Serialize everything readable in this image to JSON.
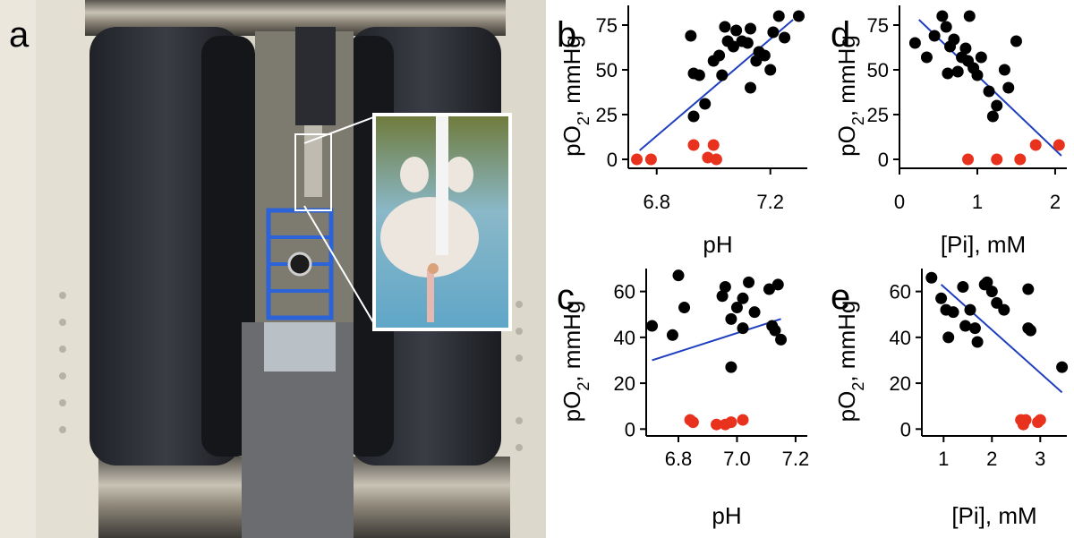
{
  "panel_labels": {
    "a": "a",
    "b": "b",
    "c": "c",
    "d": "d",
    "e": "e"
  },
  "colors": {
    "normal": "#000000",
    "hypoxic": "#e8321e",
    "fit": "#1f3fbf"
  },
  "photo": {
    "description_icon": "epr-magnet-photo"
  },
  "chart_data": [
    {
      "id": "b",
      "type": "scatter",
      "xlabel": "pH",
      "ylabel_parts": [
        "pO",
        "2",
        ", mmHg"
      ],
      "xlim": [
        6.7,
        7.33
      ],
      "ylim": [
        -5,
        86
      ],
      "xticks": [
        "6.8",
        "7.2"
      ],
      "xtick_values": [
        6.8,
        7.2
      ],
      "yticks": [
        "0",
        "25",
        "50",
        "75"
      ],
      "ytick_values": [
        0,
        25,
        50,
        75
      ],
      "fit": {
        "x": [
          6.74,
          7.28
        ],
        "y": [
          5,
          78
        ]
      },
      "series": [
        {
          "color_key": "normal",
          "points": [
            [
              6.92,
              69
            ],
            [
              6.93,
              48
            ],
            [
              6.95,
              47
            ],
            [
              6.97,
              31
            ],
            [
              6.93,
              24
            ],
            [
              7.0,
              55
            ],
            [
              7.02,
              58
            ],
            [
              7.03,
              47
            ],
            [
              7.04,
              74
            ],
            [
              7.05,
              66
            ],
            [
              7.07,
              63
            ],
            [
              7.08,
              72
            ],
            [
              7.1,
              66
            ],
            [
              7.12,
              65
            ],
            [
              7.13,
              73
            ],
            [
              7.15,
              55
            ],
            [
              7.16,
              60
            ],
            [
              7.18,
              58
            ],
            [
              7.2,
              50
            ],
            [
              7.21,
              71
            ],
            [
              7.23,
              80
            ],
            [
              7.25,
              68
            ],
            [
              7.3,
              80
            ],
            [
              7.13,
              40
            ]
          ]
        },
        {
          "color_key": "hypoxic",
          "points": [
            [
              6.73,
              0
            ],
            [
              6.78,
              0
            ],
            [
              6.93,
              8
            ],
            [
              6.98,
              1
            ],
            [
              7.0,
              8
            ],
            [
              7.01,
              0
            ]
          ]
        }
      ]
    },
    {
      "id": "c",
      "type": "scatter",
      "xlabel": "pH",
      "ylabel_parts": [
        "pO",
        "2",
        ", mmHg"
      ],
      "xlim": [
        6.69,
        7.24
      ],
      "ylim": [
        -3,
        70
      ],
      "xticks": [
        "6.8",
        "7.0",
        "7.2"
      ],
      "xtick_values": [
        6.8,
        7.0,
        7.2
      ],
      "yticks": [
        "0",
        "20",
        "40",
        "60"
      ],
      "ytick_values": [
        0,
        20,
        40,
        60
      ],
      "fit": {
        "x": [
          6.71,
          7.15
        ],
        "y": [
          30,
          48
        ]
      },
      "series": [
        {
          "color_key": "normal",
          "points": [
            [
              6.71,
              45
            ],
            [
              6.78,
              41
            ],
            [
              6.82,
              53
            ],
            [
              6.8,
              67
            ],
            [
              6.95,
              58
            ],
            [
              6.96,
              62
            ],
            [
              6.98,
              48
            ],
            [
              6.98,
              27
            ],
            [
              7.0,
              53
            ],
            [
              7.02,
              44
            ],
            [
              7.02,
              57
            ],
            [
              7.04,
              64
            ],
            [
              7.06,
              51
            ],
            [
              7.11,
              61
            ],
            [
              7.12,
              45
            ],
            [
              7.13,
              43
            ],
            [
              7.14,
              63
            ],
            [
              7.15,
              39
            ]
          ]
        },
        {
          "color_key": "hypoxic",
          "points": [
            [
              6.84,
              4
            ],
            [
              6.85,
              3
            ],
            [
              6.93,
              2
            ],
            [
              6.96,
              2
            ],
            [
              6.98,
              3
            ],
            [
              7.02,
              4
            ]
          ]
        }
      ]
    },
    {
      "id": "d",
      "type": "scatter",
      "xlabel": "[Pi], mM",
      "ylabel_parts": [
        "pO",
        "2",
        ", mmHg"
      ],
      "xlim": [
        0,
        2.15
      ],
      "ylim": [
        -5,
        86
      ],
      "xticks": [
        "0",
        "1",
        "2"
      ],
      "xtick_values": [
        0,
        1,
        2
      ],
      "yticks": [
        "0",
        "25",
        "50",
        "75"
      ],
      "ytick_values": [
        0,
        25,
        50,
        75
      ],
      "fit": {
        "x": [
          0.25,
          2.08
        ],
        "y": [
          78,
          2
        ]
      },
      "series": [
        {
          "color_key": "normal",
          "points": [
            [
              0.2,
              65
            ],
            [
              0.35,
              57
            ],
            [
              0.45,
              69
            ],
            [
              0.55,
              80
            ],
            [
              0.6,
              74
            ],
            [
              0.62,
              48
            ],
            [
              0.65,
              63
            ],
            [
              0.7,
              67
            ],
            [
              0.75,
              49
            ],
            [
              0.8,
              57
            ],
            [
              0.85,
              62
            ],
            [
              0.88,
              55
            ],
            [
              0.9,
              80
            ],
            [
              0.95,
              51
            ],
            [
              1.0,
              47
            ],
            [
              1.05,
              57
            ],
            [
              1.15,
              38
            ],
            [
              1.2,
              24
            ],
            [
              1.25,
              30
            ],
            [
              1.35,
              50
            ],
            [
              1.4,
              40
            ],
            [
              1.5,
              66
            ]
          ]
        },
        {
          "color_key": "hypoxic",
          "points": [
            [
              0.88,
              0
            ],
            [
              1.25,
              0
            ],
            [
              1.55,
              0
            ],
            [
              1.75,
              8
            ],
            [
              2.05,
              8
            ]
          ]
        }
      ]
    },
    {
      "id": "e",
      "type": "scatter",
      "xlabel": "[Pi], mM",
      "ylabel_parts": [
        "pO",
        "2",
        ", mmHg"
      ],
      "xlim": [
        0.55,
        3.55
      ],
      "ylim": [
        -3,
        70
      ],
      "xticks": [
        "1",
        "2",
        "3"
      ],
      "xtick_values": [
        1,
        2,
        3
      ],
      "yticks": [
        "0",
        "20",
        "40",
        "60"
      ],
      "ytick_values": [
        0,
        20,
        40,
        60
      ],
      "fit": {
        "x": [
          0.95,
          3.45
        ],
        "y": [
          63,
          16
        ]
      },
      "series": [
        {
          "color_key": "normal",
          "points": [
            [
              0.75,
              66
            ],
            [
              0.95,
              57
            ],
            [
              1.05,
              52
            ],
            [
              1.1,
              40
            ],
            [
              1.2,
              51
            ],
            [
              1.4,
              62
            ],
            [
              1.45,
              45
            ],
            [
              1.55,
              52
            ],
            [
              1.65,
              44
            ],
            [
              1.7,
              38
            ],
            [
              1.85,
              63
            ],
            [
              1.9,
              64
            ],
            [
              2.0,
              60
            ],
            [
              2.1,
              55
            ],
            [
              2.25,
              52
            ],
            [
              2.75,
              61
            ],
            [
              2.75,
              44
            ],
            [
              2.8,
              43
            ],
            [
              3.45,
              27
            ]
          ]
        },
        {
          "color_key": "hypoxic",
          "points": [
            [
              2.6,
              4
            ],
            [
              2.65,
              2
            ],
            [
              2.7,
              4
            ],
            [
              2.95,
              3
            ],
            [
              3.0,
              4
            ]
          ]
        }
      ]
    }
  ]
}
